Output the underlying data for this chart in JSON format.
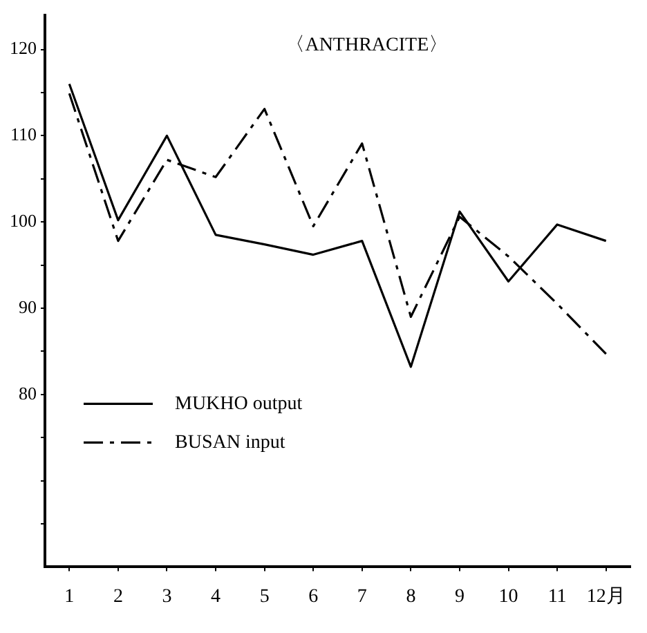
{
  "chart_data": {
    "type": "line",
    "title": "〈ANTHRACITE〉",
    "categories": [
      "1",
      "2",
      "3",
      "4",
      "5",
      "6",
      "7",
      "8",
      "9",
      "10",
      "11",
      "12月"
    ],
    "series": [
      {
        "name": "MUKHO output",
        "color": "#000000",
        "line_style": "solid",
        "values": [
          116,
          100.2,
          110,
          98.5,
          97.4,
          96.2,
          97.8,
          83.2,
          101.2,
          93.1,
          99.7,
          97.8
        ]
      },
      {
        "name": "BUSAN input",
        "color": "#000000",
        "line_style": "dashed",
        "values": [
          114.9,
          97.8,
          107.2,
          105.2,
          113.1,
          99.5,
          109.1,
          89,
          100.6,
          96,
          90.5,
          84.7
        ]
      }
    ],
    "ylim": [
      60,
      124
    ],
    "yticks": [
      {
        "value": 65,
        "label": null
      },
      {
        "value": 70,
        "label": null
      },
      {
        "value": 75,
        "label": null
      },
      80,
      {
        "value": 85,
        "label": null
      },
      90,
      {
        "value": 95,
        "label": null
      },
      100,
      {
        "value": 105,
        "label": null
      },
      110,
      {
        "value": 115,
        "label": null
      },
      120
    ],
    "grid": false,
    "legend": "bottom left",
    "marker": "none"
  }
}
